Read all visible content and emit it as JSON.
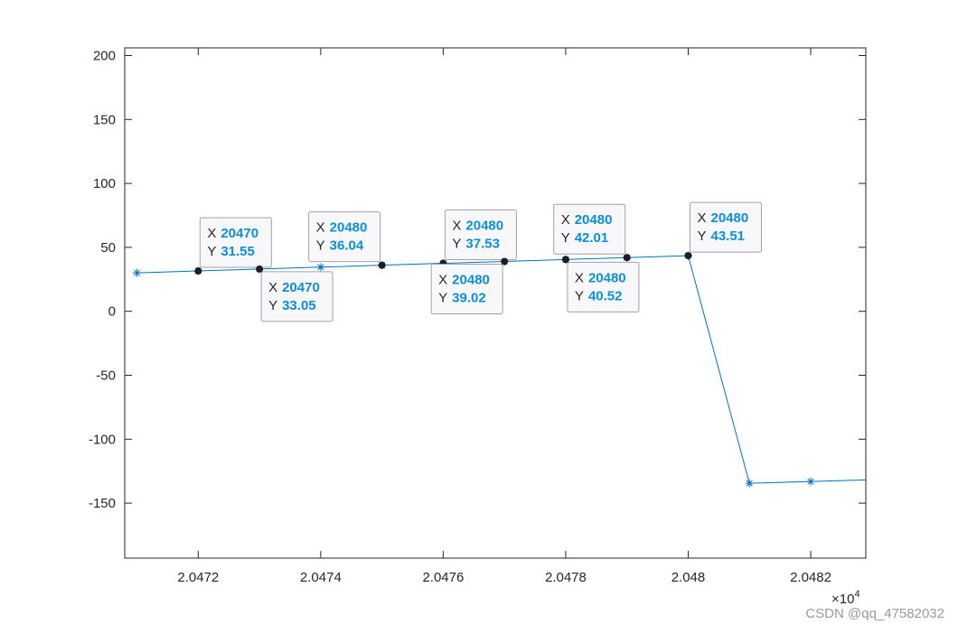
{
  "chart_data": {
    "type": "line",
    "x": [
      20471,
      20472,
      20473,
      20474,
      20475,
      20476,
      20477,
      20478,
      20479,
      20480,
      20481,
      20482,
      20483
    ],
    "series": [
      {
        "color": "#0072bd",
        "values": [
          30.06,
          31.55,
          33.05,
          34.54,
          36.04,
          37.53,
          39.02,
          40.52,
          42.01,
          43.51,
          -134.5,
          -133.1,
          -131.7
        ]
      }
    ],
    "xlim": [
      20470.8,
      20482.9
    ],
    "ylim": [
      -193,
      206
    ],
    "xticks": [
      {
        "value": 20472,
        "label": "2.0472"
      },
      {
        "value": 20474,
        "label": "2.0474"
      },
      {
        "value": 20476,
        "label": "2.0476"
      },
      {
        "value": 20478,
        "label": "2.0478"
      },
      {
        "value": 20480,
        "label": "2.048"
      },
      {
        "value": 20482,
        "label": "2.0482"
      }
    ],
    "yticks": [
      -150,
      -100,
      -50,
      0,
      50,
      100,
      150,
      200
    ],
    "x_multiplier": {
      "base": "×10",
      "exponent": "4"
    },
    "datatip_x_name": "X",
    "datatip_y_name": "Y",
    "datatips": [
      {
        "x": 20472,
        "y": 31.55,
        "x_label": "20470",
        "y_label": "31.55"
      },
      {
        "x": 20473,
        "y": 33.05,
        "x_label": "20470",
        "y_label": "33.05"
      },
      {
        "x": 20475,
        "y": 36.04,
        "x_label": "20480",
        "y_label": "36.04"
      },
      {
        "x": 20476,
        "y": 37.53,
        "x_label": "20480",
        "y_label": "37.53"
      },
      {
        "x": 20477,
        "y": 39.02,
        "x_label": "20480",
        "y_label": "39.02"
      },
      {
        "x": 20478,
        "y": 40.52,
        "x_label": "20480",
        "y_label": "40.52"
      },
      {
        "x": 20479,
        "y": 42.01,
        "x_label": "20480",
        "y_label": "42.01"
      },
      {
        "x": 20480,
        "y": 43.51,
        "x_label": "20480",
        "y_label": "43.51"
      }
    ]
  },
  "watermark": "CSDN @qq_47582032"
}
